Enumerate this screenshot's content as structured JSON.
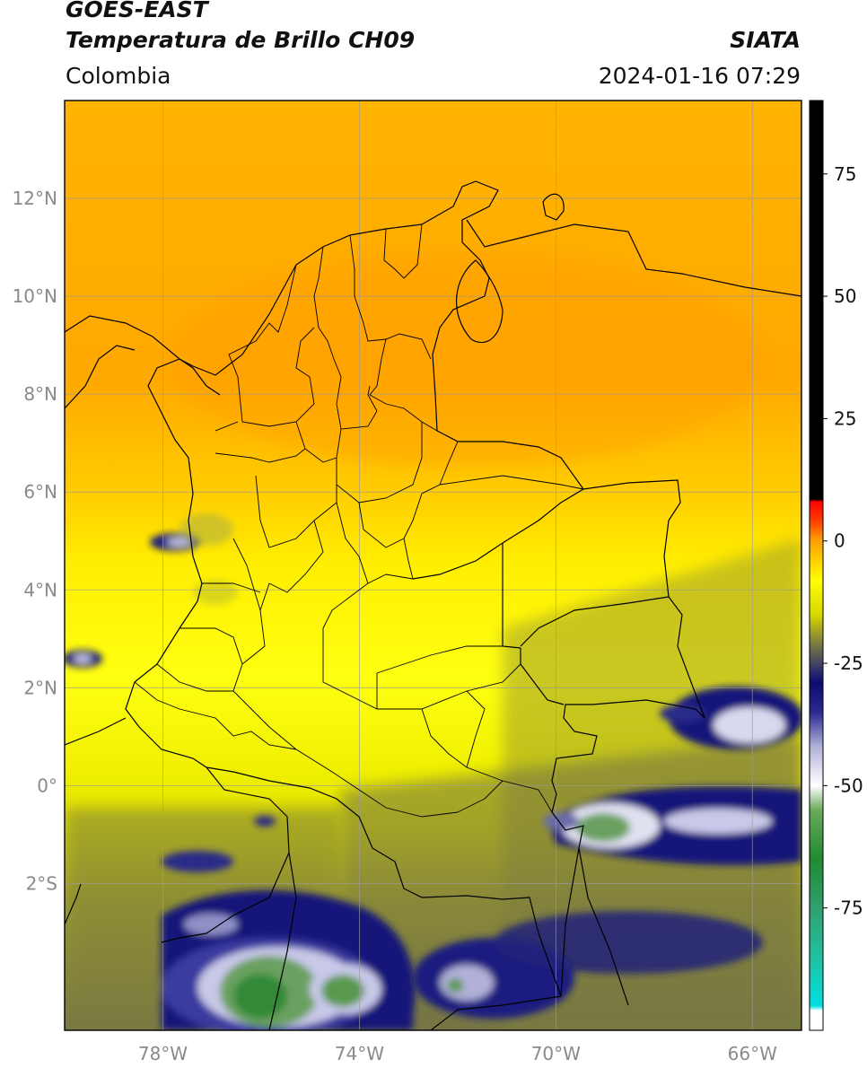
{
  "header": {
    "satellite": "GOES-EAST",
    "product": "Temperatura de Brillo CH09",
    "organization": "SIATA",
    "region": "Colombia",
    "timestamp": "2024-01-16 07:29"
  },
  "map": {
    "extent": {
      "lon_min": -80.0,
      "lon_max": -65.0,
      "lat_min": -5.0,
      "lat_max": 14.0
    },
    "lat_ticks": [
      {
        "value": 12,
        "label": "12°N"
      },
      {
        "value": 10,
        "label": "10°N"
      },
      {
        "value": 8,
        "label": "8°N"
      },
      {
        "value": 6,
        "label": "6°N"
      },
      {
        "value": 4,
        "label": "4°N"
      },
      {
        "value": 2,
        "label": "2°N"
      },
      {
        "value": 0,
        "label": "0°"
      },
      {
        "value": -2,
        "label": "2°S"
      }
    ],
    "lon_ticks": [
      {
        "value": -78,
        "label": "78°W"
      },
      {
        "value": -74,
        "label": "74°W"
      },
      {
        "value": -70,
        "label": "70°W"
      },
      {
        "value": -66,
        "label": "66°W"
      }
    ],
    "gridlines": true
  },
  "colorbar": {
    "min": -100,
    "max": 90,
    "ticks": [
      {
        "value": 75,
        "label": "75"
      },
      {
        "value": 50,
        "label": "50"
      },
      {
        "value": 25,
        "label": "25"
      },
      {
        "value": 0,
        "label": "0"
      },
      {
        "value": -25,
        "label": "-25"
      },
      {
        "value": -50,
        "label": "-50"
      },
      {
        "value": -75,
        "label": "-75"
      }
    ],
    "stops": [
      {
        "value": -100,
        "color": "#ffffff"
      },
      {
        "value": -96,
        "color": "#ffffff"
      },
      {
        "value": -95,
        "color": "#00e0e0"
      },
      {
        "value": -85,
        "color": "#20c0a0"
      },
      {
        "value": -75,
        "color": "#30a070"
      },
      {
        "value": -65,
        "color": "#208a30"
      },
      {
        "value": -55,
        "color": "#6aaa5a"
      },
      {
        "value": -50,
        "color": "#ffffff"
      },
      {
        "value": -42,
        "color": "#b0b0d8"
      },
      {
        "value": -35,
        "color": "#2a2a90"
      },
      {
        "value": -29,
        "color": "#0c0c70"
      },
      {
        "value": -25,
        "color": "#444466"
      },
      {
        "value": -21,
        "color": "#7a7a40"
      },
      {
        "value": -15,
        "color": "#d8d800"
      },
      {
        "value": -8,
        "color": "#ffff00"
      },
      {
        "value": 0,
        "color": "#ffa000"
      },
      {
        "value": 4,
        "color": "#ff4000"
      },
      {
        "value": 8,
        "color": "#ff0000"
      },
      {
        "value": 8.5,
        "color": "#000000"
      },
      {
        "value": 90,
        "color": "#000000"
      }
    ]
  }
}
